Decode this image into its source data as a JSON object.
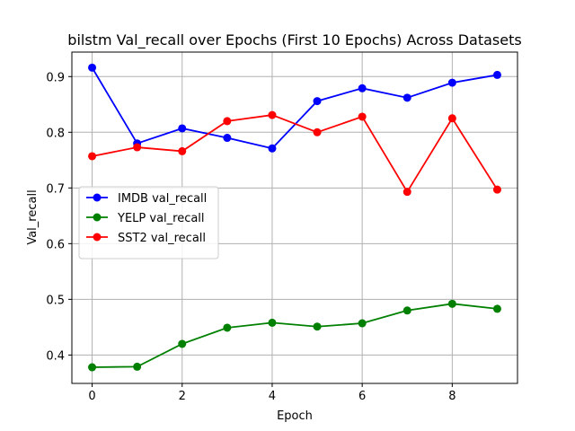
{
  "chart_data": {
    "type": "line",
    "title": "bilstm Val_recall over Epochs (First 10 Epochs) Across Datasets",
    "xlabel": "Epoch",
    "ylabel": "Val_recall",
    "xlim": [
      -0.45,
      9.45
    ],
    "ylim": [
      0.349,
      0.944
    ],
    "xticks": [
      0,
      2,
      4,
      6,
      8
    ],
    "xtick_labels": [
      "0",
      "2",
      "4",
      "6",
      "8"
    ],
    "yticks": [
      0.4,
      0.5,
      0.6,
      0.7,
      0.8,
      0.9
    ],
    "ytick_labels": [
      "0.4",
      "0.5",
      "0.6",
      "0.7",
      "0.8",
      "0.9"
    ],
    "grid": true,
    "legend_position": "center-left",
    "x": [
      0,
      1,
      2,
      3,
      4,
      5,
      6,
      7,
      8,
      9
    ],
    "series": [
      {
        "name": "IMDB val_recall",
        "color": "#0000ff",
        "marker": "circle",
        "values": [
          0.916,
          0.78,
          0.807,
          0.79,
          0.771,
          0.856,
          0.879,
          0.862,
          0.889,
          0.903
        ]
      },
      {
        "name": "YELP val_recall",
        "color": "#008000",
        "marker": "circle",
        "values": [
          0.378,
          0.379,
          0.42,
          0.449,
          0.458,
          0.451,
          0.457,
          0.48,
          0.492,
          0.483
        ]
      },
      {
        "name": "SST2 val_recall",
        "color": "#ff0000",
        "marker": "circle",
        "values": [
          0.757,
          0.773,
          0.766,
          0.82,
          0.831,
          0.8,
          0.828,
          0.693,
          0.825,
          0.697
        ]
      }
    ]
  }
}
